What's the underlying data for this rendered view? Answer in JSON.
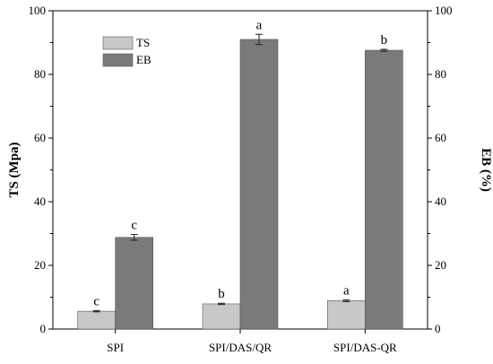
{
  "chart_data": {
    "type": "bar",
    "categories": [
      "SPI",
      "SPI/DAS/QR",
      "SPI/DAS-QR"
    ],
    "series": [
      {
        "name": "TS",
        "axis": "left",
        "color": "#c8c8c8",
        "values": [
          5.6,
          7.9,
          8.9
        ],
        "errors": [
          0.2,
          0.2,
          0.3
        ],
        "letters": [
          "c",
          "b",
          "a"
        ]
      },
      {
        "name": "EB",
        "axis": "right",
        "color": "#7a7a7a",
        "values": [
          28.8,
          91.0,
          87.6
        ],
        "errors": [
          0.9,
          1.6,
          0.3
        ],
        "letters": [
          "c",
          "a",
          "b"
        ]
      }
    ],
    "ylabel": "TS (Mpa)",
    "y2label": "EB (%)",
    "xlabel": "",
    "ylim": [
      0,
      100
    ],
    "y2lim": [
      0,
      100
    ],
    "yticks": [
      0,
      20,
      40,
      60,
      80,
      100
    ],
    "y2ticks": [
      0,
      20,
      40,
      60,
      80,
      100
    ],
    "grid": false,
    "legend_position": "top-left"
  }
}
